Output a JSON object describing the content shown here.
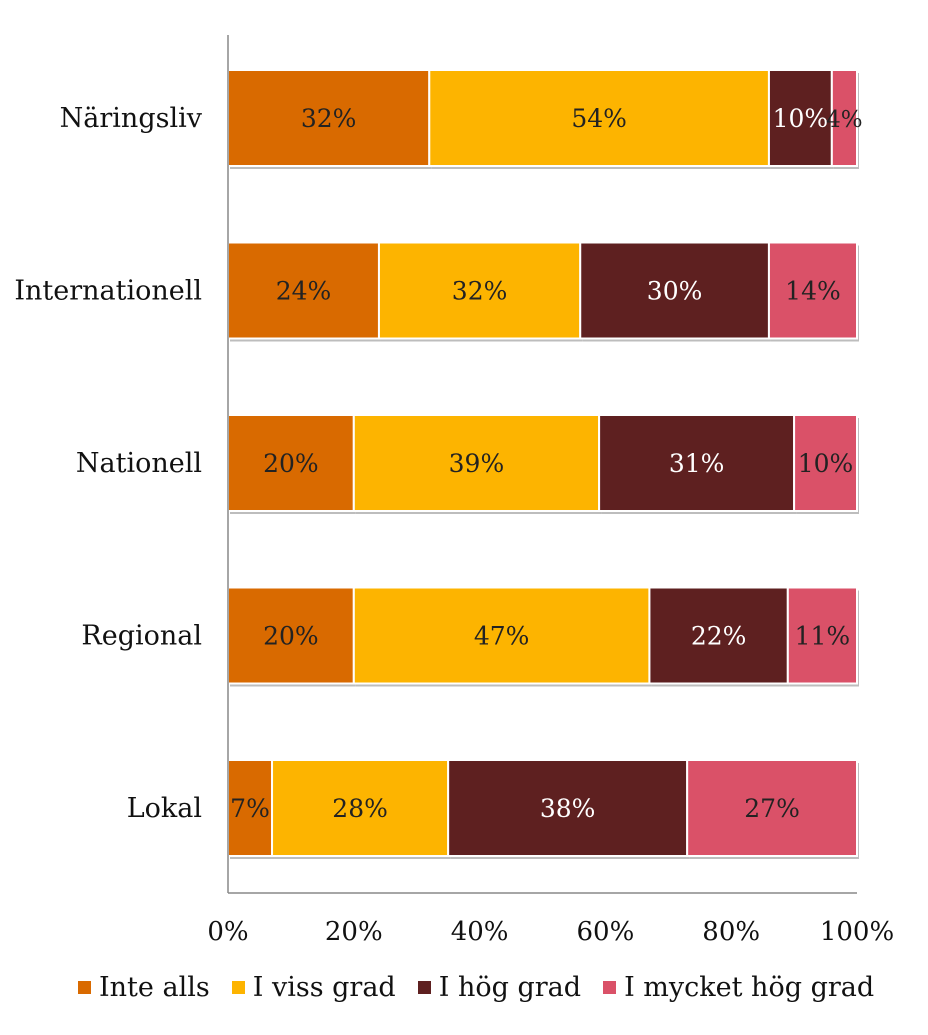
{
  "chart_data": {
    "type": "bar",
    "orientation": "horizontal",
    "stacked": true,
    "title": "",
    "xlabel": "",
    "ylabel": "",
    "xlim": [
      0,
      100
    ],
    "x_ticks": [
      "0%",
      "20%",
      "40%",
      "60%",
      "80%",
      "100%"
    ],
    "categories": [
      "Näringsliv",
      "Internationell",
      "Nationell",
      "Regional",
      "Lokal"
    ],
    "series": [
      {
        "name": "Inte alls",
        "color": "#d96a00",
        "values": [
          32,
          24,
          20,
          20,
          7
        ]
      },
      {
        "name": "I viss grad",
        "color": "#fdb400",
        "values": [
          54,
          32,
          39,
          47,
          28
        ]
      },
      {
        "name": "I hög grad",
        "color": "#5e2020",
        "values": [
          10,
          30,
          31,
          22,
          38
        ]
      },
      {
        "name": "I mycket hög grad",
        "color": "#da5168",
        "values": [
          4,
          14,
          10,
          11,
          27
        ]
      }
    ],
    "value_labels_color": {
      "Inte alls": "#222222",
      "I viss grad": "#222222",
      "I hög grad": "#ffffff",
      "I mycket hög grad": "#222222"
    },
    "legend_position": "bottom",
    "grid": false
  }
}
